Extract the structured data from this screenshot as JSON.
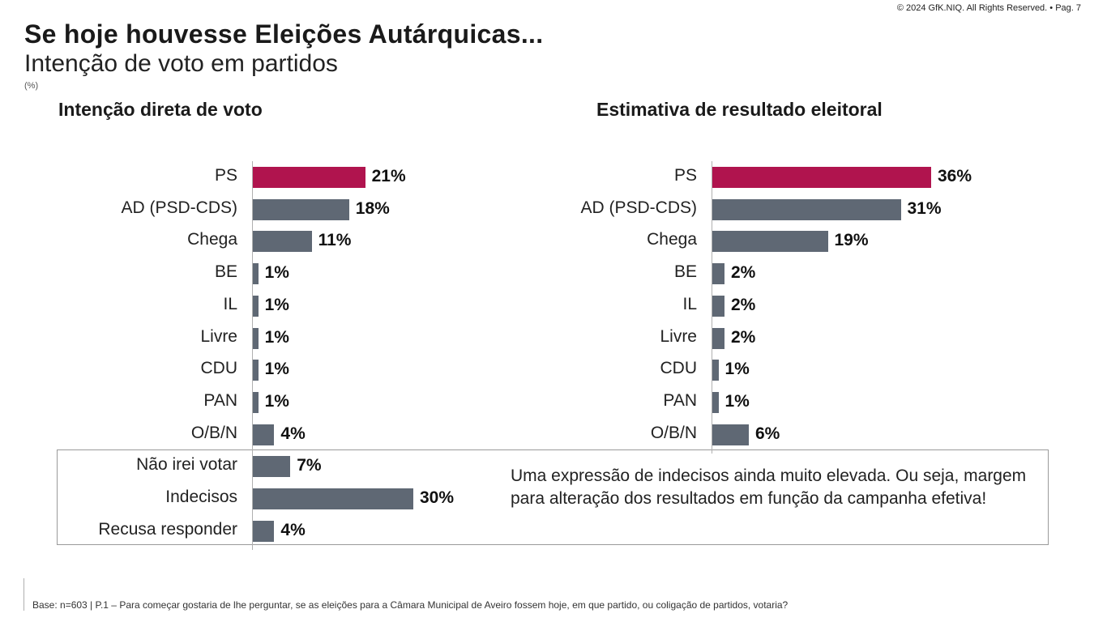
{
  "header": {
    "copyright": "© 2024 GfK.NIQ. All Rights Reserved. • Pag. 7",
    "title": "Se hoje houvesse Eleições Autárquicas...",
    "subtitle": "Intenção de voto em partidos",
    "unit": "(%)"
  },
  "colors": {
    "highlight": "#b0144e",
    "bar": "#5f6874"
  },
  "chart_data": [
    {
      "type": "bar",
      "orientation": "horizontal",
      "title": "Intenção direta de voto",
      "categories": [
        "PS",
        "AD (PSD-CDS)",
        "Chega",
        "BE",
        "IL",
        "Livre",
        "CDU",
        "PAN",
        "O/B/N",
        "Não irei votar",
        "Indecisos",
        "Recusa responder"
      ],
      "values": [
        21,
        18,
        11,
        1,
        1,
        1,
        1,
        1,
        4,
        7,
        30,
        4
      ],
      "value_labels": [
        "21%",
        "18%",
        "11%",
        "1%",
        "1%",
        "1%",
        "1%",
        "1%",
        "4%",
        "7%",
        "30%",
        "4%"
      ],
      "highlight_index": 0
    },
    {
      "type": "bar",
      "orientation": "horizontal",
      "title": "Estimativa de resultado eleitoral",
      "categories": [
        "PS",
        "AD (PSD-CDS)",
        "Chega",
        "BE",
        "IL",
        "Livre",
        "CDU",
        "PAN",
        "O/B/N"
      ],
      "values": [
        36,
        31,
        19,
        2,
        2,
        2,
        1,
        1,
        6
      ],
      "value_labels": [
        "36%",
        "31%",
        "19%",
        "2%",
        "2%",
        "2%",
        "1%",
        "1%",
        "6%"
      ],
      "highlight_index": 0
    }
  ],
  "note": "Uma expressão de indecisos ainda muito elevada. Ou seja, margem para alteração dos resultados em função da campanha efetiva!",
  "footer": "Base: n=603 | P.1 – Para começar gostaria de lhe perguntar, se as eleições para a Câmara Municipal de Aveiro fossem hoje, em que partido, ou coligação de partidos, votaria?"
}
